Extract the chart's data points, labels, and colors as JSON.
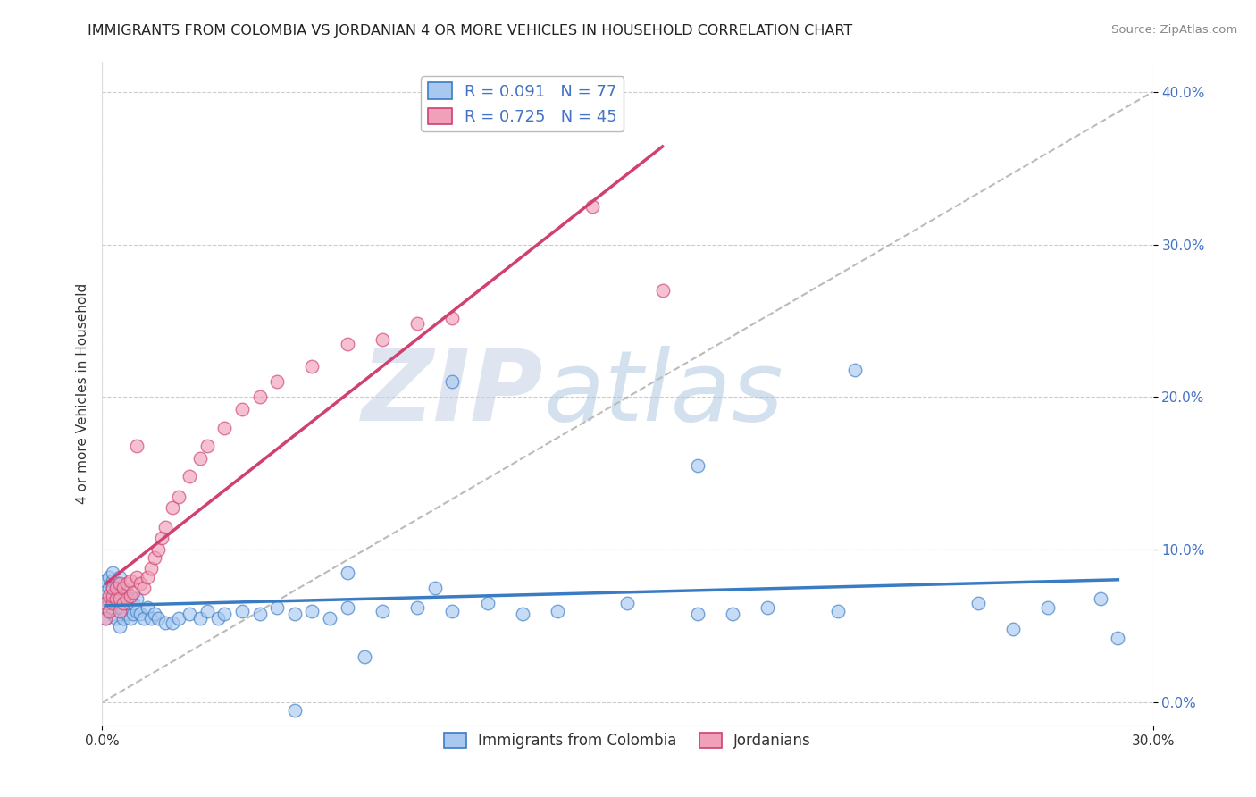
{
  "title": "IMMIGRANTS FROM COLOMBIA VS JORDANIAN 4 OR MORE VEHICLES IN HOUSEHOLD CORRELATION CHART",
  "source": "Source: ZipAtlas.com",
  "ylabel": "4 or more Vehicles in Household",
  "xlim": [
    0.0,
    0.3
  ],
  "ylim": [
    -0.015,
    0.42
  ],
  "xticks": [
    0.0,
    0.3
  ],
  "xticklabels": [
    "0.0%",
    "30.0%"
  ],
  "yticks": [
    0.0,
    0.1,
    0.2,
    0.3,
    0.4
  ],
  "yticklabels": [
    "0.0%",
    "10.0%",
    "20.0%",
    "30.0%",
    "40.0%"
  ],
  "legend_labels": [
    "Immigrants from Colombia",
    "Jordanians"
  ],
  "r_colombia": 0.091,
  "n_colombia": 77,
  "r_jordan": 0.725,
  "n_jordan": 45,
  "color_colombia": "#A8C8F0",
  "color_jordan": "#F0A0B8",
  "trendline_color_colombia": "#3A7CC4",
  "trendline_color_jordan": "#D04070",
  "watermark_zip": "ZIP",
  "watermark_atlas": "atlas",
  "watermark_color_zip": "#C8D8EC",
  "watermark_color_atlas": "#A8C0E0",
  "background_color": "#FFFFFF",
  "grid_color": "#CCCCCC",
  "colombia_x": [
    0.001,
    0.001,
    0.001,
    0.002,
    0.002,
    0.002,
    0.002,
    0.003,
    0.003,
    0.003,
    0.003,
    0.003,
    0.004,
    0.004,
    0.004,
    0.004,
    0.005,
    0.005,
    0.005,
    0.005,
    0.005,
    0.006,
    0.006,
    0.006,
    0.007,
    0.007,
    0.007,
    0.008,
    0.008,
    0.009,
    0.009,
    0.01,
    0.01,
    0.011,
    0.012,
    0.013,
    0.014,
    0.015,
    0.016,
    0.018,
    0.02,
    0.022,
    0.025,
    0.028,
    0.03,
    0.033,
    0.035,
    0.04,
    0.045,
    0.05,
    0.055,
    0.06,
    0.065,
    0.07,
    0.08,
    0.09,
    0.1,
    0.11,
    0.12,
    0.13,
    0.15,
    0.17,
    0.19,
    0.21,
    0.25,
    0.27,
    0.285,
    0.1,
    0.17,
    0.215,
    0.26,
    0.07,
    0.095,
    0.055,
    0.075,
    0.29,
    0.18
  ],
  "colombia_y": [
    0.055,
    0.07,
    0.08,
    0.06,
    0.065,
    0.075,
    0.082,
    0.058,
    0.068,
    0.075,
    0.08,
    0.085,
    0.055,
    0.065,
    0.072,
    0.078,
    0.05,
    0.062,
    0.068,
    0.075,
    0.082,
    0.055,
    0.065,
    0.075,
    0.058,
    0.065,
    0.072,
    0.055,
    0.068,
    0.058,
    0.065,
    0.06,
    0.068,
    0.058,
    0.055,
    0.062,
    0.055,
    0.058,
    0.055,
    0.052,
    0.052,
    0.055,
    0.058,
    0.055,
    0.06,
    0.055,
    0.058,
    0.06,
    0.058,
    0.062,
    0.058,
    0.06,
    0.055,
    0.062,
    0.06,
    0.062,
    0.06,
    0.065,
    0.058,
    0.06,
    0.065,
    0.058,
    0.062,
    0.06,
    0.065,
    0.062,
    0.068,
    0.21,
    0.155,
    0.218,
    0.048,
    0.085,
    0.075,
    -0.005,
    0.03,
    0.042,
    0.058
  ],
  "jordan_x": [
    0.001,
    0.001,
    0.002,
    0.002,
    0.003,
    0.003,
    0.003,
    0.004,
    0.004,
    0.005,
    0.005,
    0.005,
    0.006,
    0.006,
    0.007,
    0.007,
    0.008,
    0.008,
    0.009,
    0.01,
    0.011,
    0.012,
    0.013,
    0.014,
    0.015,
    0.016,
    0.017,
    0.018,
    0.02,
    0.022,
    0.025,
    0.028,
    0.03,
    0.035,
    0.04,
    0.045,
    0.05,
    0.06,
    0.07,
    0.08,
    0.09,
    0.1,
    0.14,
    0.16,
    0.01
  ],
  "jordan_y": [
    0.055,
    0.065,
    0.06,
    0.07,
    0.065,
    0.07,
    0.075,
    0.068,
    0.075,
    0.06,
    0.068,
    0.078,
    0.065,
    0.075,
    0.068,
    0.078,
    0.07,
    0.08,
    0.072,
    0.082,
    0.078,
    0.075,
    0.082,
    0.088,
    0.095,
    0.1,
    0.108,
    0.115,
    0.128,
    0.135,
    0.148,
    0.16,
    0.168,
    0.18,
    0.192,
    0.2,
    0.21,
    0.22,
    0.235,
    0.238,
    0.248,
    0.252,
    0.325,
    0.27,
    0.168
  ]
}
